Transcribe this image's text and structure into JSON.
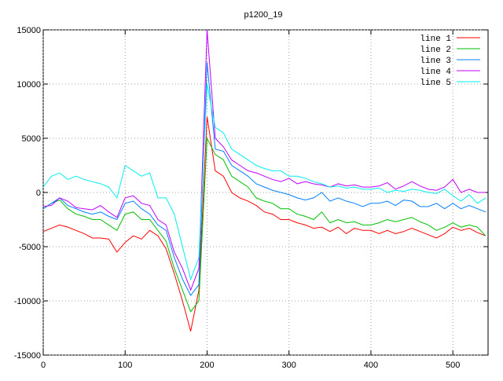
{
  "chart_data": {
    "type": "line",
    "title": "p1200_19",
    "x": [
      0,
      10,
      20,
      30,
      40,
      50,
      60,
      70,
      80,
      90,
      100,
      110,
      120,
      130,
      140,
      150,
      160,
      170,
      180,
      190,
      200,
      210,
      220,
      230,
      240,
      250,
      260,
      270,
      280,
      290,
      300,
      310,
      320,
      330,
      340,
      350,
      360,
      370,
      380,
      390,
      400,
      410,
      420,
      430,
      440,
      450,
      460,
      470,
      480,
      490,
      500,
      510,
      520,
      530,
      540
    ],
    "series": [
      {
        "name": "line 1",
        "color": "#ff0000",
        "values": [
          -3600,
          -3300,
          -3000,
          -3200,
          -3500,
          -3800,
          -4200,
          -4200,
          -4300,
          -5500,
          -4600,
          -4000,
          -4300,
          -3500,
          -4000,
          -5200,
          -7500,
          -10000,
          -12800,
          -9000,
          7000,
          2000,
          1500,
          0,
          -500,
          -800,
          -1200,
          -1800,
          -2000,
          -2500,
          -2500,
          -2800,
          -3000,
          -3300,
          -3200,
          -3600,
          -3200,
          -3800,
          -3300,
          -3500,
          -3500,
          -3800,
          -3500,
          -3800,
          -3600,
          -3300,
          -3600,
          -3900,
          -4200,
          -3800,
          -3200,
          -3500,
          -3300,
          -3700,
          -4000
        ]
      },
      {
        "name": "line 2",
        "color": "#00c000",
        "values": [
          -1500,
          -1000,
          -700,
          -1500,
          -2000,
          -2200,
          -2500,
          -2500,
          -3000,
          -3500,
          -2000,
          -1800,
          -2500,
          -2500,
          -3500,
          -4500,
          -7000,
          -9000,
          -11000,
          -10000,
          5000,
          3500,
          3000,
          1500,
          1000,
          500,
          -500,
          -800,
          -1000,
          -1500,
          -1500,
          -2000,
          -2200,
          -2500,
          -1800,
          -2800,
          -2500,
          -2800,
          -2700,
          -3000,
          -3000,
          -2800,
          -2500,
          -2700,
          -2500,
          -2300,
          -2700,
          -3000,
          -3500,
          -3200,
          -2800,
          -3200,
          -3000,
          -3200,
          -4000
        ]
      },
      {
        "name": "line 3",
        "color": "#0080ff",
        "values": [
          -1500,
          -1000,
          -500,
          -1200,
          -1500,
          -1800,
          -2000,
          -1800,
          -2200,
          -2500,
          -1000,
          -800,
          -1500,
          -2000,
          -3000,
          -3500,
          -6000,
          -8000,
          -9500,
          -8500,
          12000,
          4000,
          3800,
          2500,
          2000,
          1500,
          800,
          500,
          200,
          0,
          -200,
          -500,
          -700,
          -500,
          0,
          -800,
          -500,
          -800,
          -1000,
          -1300,
          -1000,
          -1000,
          -800,
          -1200,
          -700,
          -800,
          -1300,
          -1300,
          -1000,
          -1500,
          -1000,
          -1500,
          -1200,
          -1500,
          -1800
        ]
      },
      {
        "name": "line 4",
        "color": "#c000ff",
        "values": [
          -1300,
          -1200,
          -500,
          -800,
          -1400,
          -1500,
          -1600,
          -1200,
          -1800,
          -2300,
          -500,
          -300,
          -1000,
          -1200,
          -2500,
          -3000,
          -5500,
          -7000,
          -9000,
          -7000,
          15000,
          5000,
          4200,
          3000,
          2500,
          2000,
          1800,
          1500,
          1200,
          1000,
          1300,
          800,
          1000,
          800,
          700,
          500,
          800,
          600,
          700,
          500,
          500,
          600,
          900,
          300,
          600,
          1000,
          600,
          300,
          200,
          500,
          1200,
          0,
          300,
          0,
          0
        ]
      },
      {
        "name": "line 5",
        "color": "#00eeee",
        "values": [
          500,
          1500,
          1800,
          1200,
          1500,
          1200,
          1000,
          800,
          500,
          -500,
          2500,
          2000,
          1500,
          1800,
          -500,
          -500,
          -2000,
          -5000,
          -8000,
          -6000,
          10000,
          6000,
          5500,
          4000,
          3500,
          3000,
          2500,
          2200,
          2000,
          2000,
          1500,
          1500,
          1300,
          1000,
          800,
          500,
          600,
          400,
          500,
          300,
          300,
          400,
          0,
          200,
          100,
          300,
          200,
          0,
          -100,
          300,
          -300,
          -800,
          -200,
          -1000,
          -500
        ]
      }
    ],
    "xlim": [
      0,
      543
    ],
    "ylim": [
      -15000,
      15000
    ],
    "xticks": [
      0,
      100,
      200,
      300,
      400,
      500
    ],
    "yticks": [
      -15000,
      -10000,
      -5000,
      0,
      5000,
      10000,
      15000
    ],
    "grid": true,
    "legend": "top-right"
  }
}
